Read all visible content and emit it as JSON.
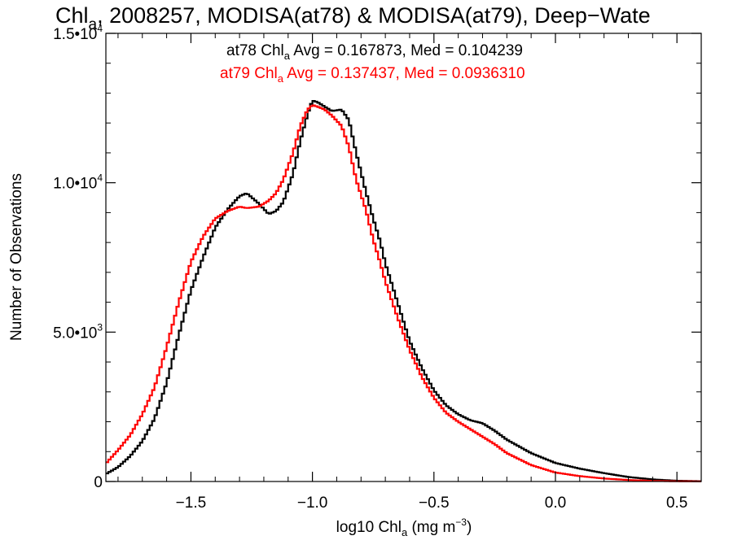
{
  "colors": {
    "series_black": "#000000",
    "series_red": "#ff0000",
    "background": "#ffffff"
  },
  "chart_data": {
    "type": "line",
    "title_main": "Chl",
    "title_sub": "a",
    "title_rest": ", 2008257, MODISA(at78) & MODISA(at79), Deep−Wate",
    "xlabel_main": "log10 Chl",
    "xlabel_sub": "a",
    "xlabel_rest": " (mg m",
    "xlabel_sup": "−3",
    "xlabel_close": ")",
    "ylabel": "Number of Observations",
    "xlim": [
      -1.85,
      0.6
    ],
    "ylim": [
      0,
      15000
    ],
    "x_ticks": [
      {
        "value": -1.5,
        "label": "−1.5"
      },
      {
        "value": -1.0,
        "label": "−1.0"
      },
      {
        "value": -0.5,
        "label": "−0.5"
      },
      {
        "value": 0.0,
        "label": "0.0"
      },
      {
        "value": 0.5,
        "label": "0.5"
      }
    ],
    "y_ticks": [
      {
        "value": 0,
        "mantissa": "0",
        "exp": ""
      },
      {
        "value": 5000,
        "mantissa": "5.0•10",
        "exp": "3"
      },
      {
        "value": 10000,
        "mantissa": "1.0•10",
        "exp": "4"
      },
      {
        "value": 15000,
        "mantissa": "1.5•10",
        "exp": "4"
      }
    ],
    "annotations": [
      {
        "pre": "at78 Chl",
        "sub": "a",
        "post": " Avg = 0.167873, Med = 0.104239",
        "color": "#000000"
      },
      {
        "pre": "at79 Chl",
        "sub": "a",
        "post": " Avg = 0.137437, Med = 0.0936310",
        "color": "#ff0000"
      }
    ],
    "series": [
      {
        "color": "#000000",
        "x": [
          -1.85,
          -1.8,
          -1.75,
          -1.7,
          -1.65,
          -1.6,
          -1.55,
          -1.5,
          -1.45,
          -1.4,
          -1.35,
          -1.3,
          -1.27,
          -1.22,
          -1.18,
          -1.15,
          -1.12,
          -1.08,
          -1.05,
          -1.02,
          -1.0,
          -0.98,
          -0.95,
          -0.92,
          -0.88,
          -0.85,
          -0.82,
          -0.78,
          -0.75,
          -0.72,
          -0.7,
          -0.65,
          -0.6,
          -0.55,
          -0.5,
          -0.45,
          -0.4,
          -0.35,
          -0.3,
          -0.25,
          -0.2,
          -0.1,
          0.0,
          0.1,
          0.2,
          0.3,
          0.4,
          0.5,
          0.6
        ],
        "values": [
          250,
          480,
          850,
          1350,
          2100,
          3300,
          4900,
          6400,
          7500,
          8500,
          9100,
          9550,
          9650,
          9300,
          8950,
          9050,
          9350,
          10300,
          11400,
          12300,
          12750,
          12700,
          12550,
          12400,
          12450,
          12100,
          11000,
          9700,
          8800,
          8000,
          7300,
          6000,
          4700,
          3800,
          3050,
          2550,
          2250,
          2050,
          1950,
          1700,
          1400,
          950,
          620,
          430,
          280,
          150,
          70,
          25,
          10
        ]
      },
      {
        "color": "#ff0000",
        "x": [
          -1.85,
          -1.8,
          -1.75,
          -1.7,
          -1.65,
          -1.6,
          -1.55,
          -1.5,
          -1.45,
          -1.4,
          -1.35,
          -1.3,
          -1.27,
          -1.22,
          -1.18,
          -1.15,
          -1.12,
          -1.08,
          -1.05,
          -1.02,
          -1.0,
          -0.98,
          -0.95,
          -0.92,
          -0.88,
          -0.85,
          -0.82,
          -0.78,
          -0.75,
          -0.72,
          -0.7,
          -0.65,
          -0.6,
          -0.55,
          -0.5,
          -0.45,
          -0.4,
          -0.35,
          -0.3,
          -0.25,
          -0.2,
          -0.1,
          0.0,
          0.1,
          0.2,
          0.3,
          0.4,
          0.5,
          0.6
        ],
        "values": [
          600,
          1050,
          1550,
          2250,
          3150,
          4500,
          6000,
          7350,
          8200,
          8800,
          9050,
          9200,
          9150,
          9200,
          9400,
          9650,
          10100,
          11000,
          11900,
          12450,
          12600,
          12550,
          12450,
          12250,
          11900,
          11200,
          10100,
          9100,
          8100,
          7300,
          6700,
          5500,
          4400,
          3500,
          2800,
          2300,
          2000,
          1750,
          1500,
          1250,
          950,
          550,
          300,
          180,
          100,
          50,
          20,
          8,
          5
        ]
      }
    ]
  }
}
